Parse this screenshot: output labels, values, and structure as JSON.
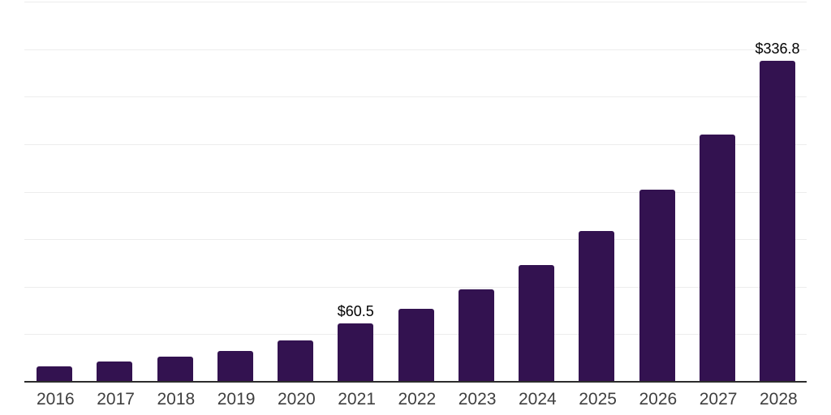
{
  "chart_data": {
    "type": "bar",
    "title": "",
    "categories": [
      "2016",
      "2017",
      "2018",
      "2019",
      "2020",
      "2021",
      "2022",
      "2023",
      "2024",
      "2025",
      "2026",
      "2027",
      "2028"
    ],
    "values": [
      15.4,
      20.5,
      25.6,
      31.5,
      42.6,
      60.5,
      75.8,
      96.2,
      121.7,
      157.4,
      201.6,
      259.4,
      336.8
    ],
    "value_labels": [
      {
        "category": "2021",
        "text": "$60.5"
      },
      {
        "category": "2028",
        "text": "$336.8"
      }
    ],
    "xlabel": "",
    "ylabel": "",
    "ylim": [
      0,
      400
    ],
    "grid_step": 50,
    "grid": "horizontal-only",
    "legend": "none",
    "colors": {
      "bar": "#331250",
      "axis_line": "#2c2c2c",
      "gridline": "#ededed",
      "tick_label": "#3f3f3f",
      "value_label": "#000000",
      "background": "#ffffff"
    }
  }
}
